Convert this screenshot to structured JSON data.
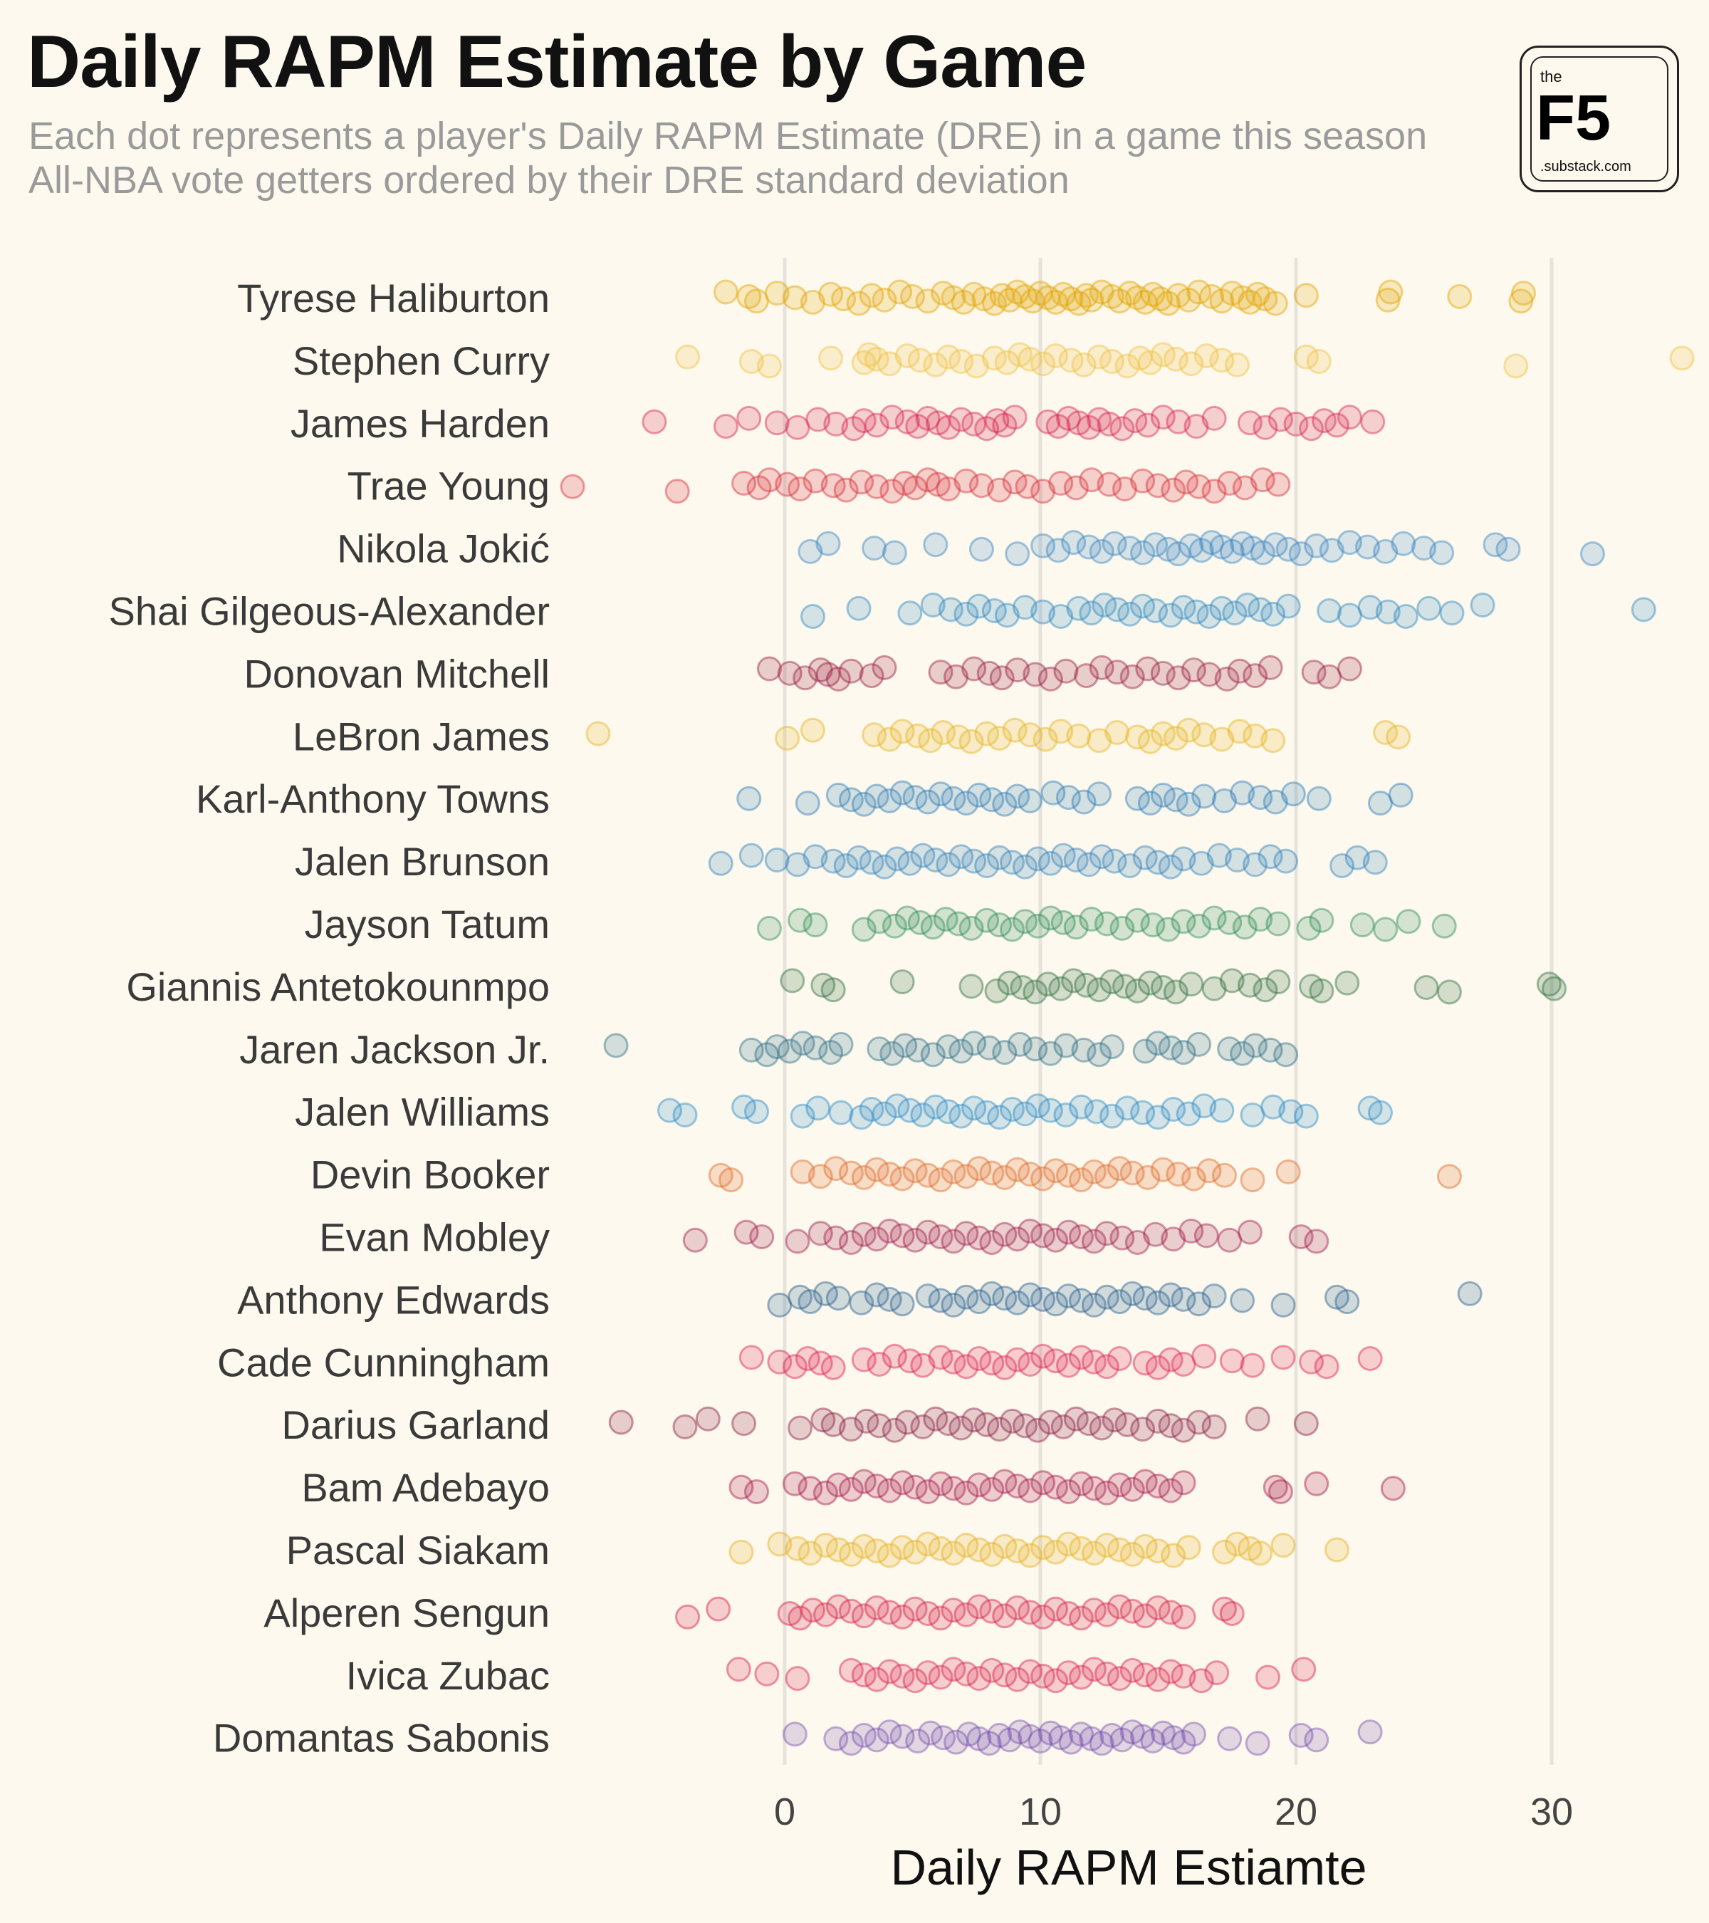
{
  "header": {
    "title": "Daily RAPM Estimate by Game",
    "subtitle_line1": "Each dot represents a player's Daily RAPM Estimate (DRE) in a game this season",
    "subtitle_line2": "All-NBA vote getters ordered by their DRE standard deviation"
  },
  "logo": {
    "the": "the",
    "f5": "F5",
    "substack": ".substack.com"
  },
  "chart_data": {
    "type": "scatter",
    "title": "Daily RAPM Estimate by Game",
    "xlabel": "Daily RAPM Estiamte",
    "ylabel": "",
    "xlim": [
      -8.5,
      35.5
    ],
    "xticks": [
      0,
      10,
      20,
      30
    ],
    "grid": true,
    "legend": "none",
    "series": [
      {
        "name": "Tyrese Haliburton",
        "color": "#e2a400",
        "values": [
          -2.3,
          -1.4,
          -1.1,
          -0.3,
          0.4,
          1.1,
          1.8,
          2.3,
          2.9,
          3.4,
          3.9,
          4.5,
          5.0,
          5.6,
          6.2,
          6.6,
          7.0,
          7.4,
          7.8,
          8.2,
          8.5,
          8.8,
          9.1,
          9.4,
          9.7,
          10.0,
          10.3,
          10.6,
          10.9,
          11.2,
          11.5,
          11.8,
          12.0,
          12.4,
          12.8,
          13.1,
          13.5,
          13.8,
          14.1,
          14.4,
          14.7,
          15.0,
          15.4,
          15.8,
          16.2,
          16.7,
          17.1,
          17.5,
          17.9,
          18.2,
          18.5,
          18.8,
          19.2,
          20.4,
          23.6,
          23.7,
          26.4,
          28.8,
          28.9
        ]
      },
      {
        "name": "Stephen Curry",
        "color": "#f0c040",
        "values": [
          -3.8,
          -1.3,
          -0.6,
          1.8,
          3.1,
          3.3,
          3.6,
          4.1,
          4.8,
          5.3,
          5.9,
          6.4,
          6.9,
          7.5,
          8.2,
          8.7,
          9.2,
          9.6,
          10.1,
          10.6,
          11.2,
          11.7,
          12.3,
          12.8,
          13.4,
          13.9,
          14.3,
          14.8,
          15.3,
          15.9,
          16.5,
          17.1,
          17.7,
          20.4,
          20.9,
          28.6,
          35.1
        ]
      },
      {
        "name": "James Harden",
        "color": "#d9264f",
        "values": [
          -5.1,
          -2.3,
          -1.4,
          -0.3,
          0.5,
          1.3,
          2.0,
          2.7,
          3.1,
          3.6,
          4.2,
          4.8,
          5.2,
          5.6,
          6.0,
          6.4,
          6.9,
          7.4,
          7.9,
          8.3,
          8.6,
          9.0,
          10.3,
          10.7,
          11.1,
          11.5,
          11.9,
          12.3,
          12.7,
          13.2,
          13.7,
          14.2,
          14.8,
          15.4,
          16.1,
          16.8,
          18.2,
          18.8,
          19.4,
          20.0,
          20.6,
          21.1,
          21.6,
          22.1,
          23.0
        ]
      },
      {
        "name": "Trae Young",
        "color": "#d92f3a",
        "values": [
          -8.3,
          -4.2,
          -1.6,
          -1.0,
          -0.6,
          0.1,
          0.6,
          1.2,
          1.9,
          2.4,
          3.0,
          3.6,
          4.2,
          4.7,
          5.1,
          5.6,
          6.0,
          6.4,
          7.1,
          7.7,
          8.4,
          9.0,
          9.5,
          10.1,
          10.8,
          11.4,
          12.0,
          12.7,
          13.3,
          14.0,
          14.6,
          15.2,
          15.7,
          16.2,
          16.8,
          17.4,
          18.0,
          18.7,
          19.3
        ]
      },
      {
        "name": "Nikola Jokić",
        "color": "#3a86c2",
        "values": [
          1.0,
          1.7,
          3.5,
          4.3,
          5.9,
          7.7,
          9.1,
          10.1,
          10.7,
          11.3,
          11.9,
          12.4,
          12.9,
          13.5,
          14.0,
          14.5,
          15.0,
          15.4,
          15.9,
          16.3,
          16.7,
          17.1,
          17.5,
          17.9,
          18.3,
          18.7,
          19.2,
          19.7,
          20.2,
          20.8,
          21.4,
          22.1,
          22.8,
          23.5,
          24.2,
          25.0,
          25.7,
          27.8,
          28.3,
          31.6
        ]
      },
      {
        "name": "Shai Gilgeous-Alexander",
        "color": "#2c87c0",
        "values": [
          1.1,
          2.9,
          4.9,
          5.8,
          6.5,
          7.1,
          7.6,
          8.2,
          8.7,
          9.4,
          10.1,
          10.8,
          11.5,
          12.0,
          12.5,
          13.0,
          13.5,
          14.0,
          14.5,
          15.1,
          15.6,
          16.1,
          16.6,
          17.1,
          17.6,
          18.1,
          18.6,
          19.1,
          19.7,
          21.3,
          22.1,
          22.9,
          23.6,
          24.3,
          25.2,
          26.1,
          27.3,
          33.6
        ]
      },
      {
        "name": "Donovan Mitchell",
        "color": "#9b1d43",
        "values": [
          -0.6,
          0.2,
          0.8,
          1.4,
          1.7,
          2.1,
          2.6,
          3.4,
          3.9,
          6.1,
          6.7,
          7.4,
          8.0,
          8.5,
          9.1,
          9.8,
          10.4,
          11.0,
          11.8,
          12.4,
          13.0,
          13.6,
          14.2,
          14.8,
          15.4,
          16.0,
          16.6,
          17.3,
          17.8,
          18.4,
          19.0,
          20.7,
          21.3,
          22.1
        ]
      },
      {
        "name": "LeBron James",
        "color": "#e6b422",
        "values": [
          -7.3,
          0.1,
          1.1,
          3.5,
          4.1,
          4.6,
          5.2,
          5.7,
          6.2,
          6.8,
          7.3,
          7.9,
          8.4,
          9.0,
          9.6,
          10.2,
          10.8,
          11.5,
          12.3,
          13.0,
          13.8,
          14.3,
          14.8,
          15.3,
          15.8,
          16.4,
          17.1,
          17.8,
          18.4,
          19.1,
          23.5,
          24.0
        ]
      },
      {
        "name": "Karl-Anthony Towns",
        "color": "#2c7bb6",
        "values": [
          -1.4,
          0.9,
          2.1,
          2.6,
          3.1,
          3.6,
          4.1,
          4.6,
          5.1,
          5.6,
          6.1,
          6.6,
          7.1,
          7.6,
          8.1,
          8.6,
          9.1,
          9.6,
          10.5,
          11.1,
          11.7,
          12.3,
          13.8,
          14.3,
          14.8,
          15.3,
          15.8,
          16.4,
          17.2,
          17.9,
          18.6,
          19.2,
          19.9,
          20.9,
          23.3,
          24.1
        ]
      },
      {
        "name": "Jalen Brunson",
        "color": "#3281ba",
        "values": [
          -2.5,
          -1.3,
          -0.3,
          0.5,
          1.2,
          1.9,
          2.4,
          2.9,
          3.4,
          3.9,
          4.4,
          4.9,
          5.4,
          5.9,
          6.4,
          6.9,
          7.4,
          7.9,
          8.4,
          8.9,
          9.4,
          9.9,
          10.4,
          10.9,
          11.4,
          11.9,
          12.4,
          12.9,
          13.5,
          14.1,
          14.6,
          15.1,
          15.6,
          16.3,
          17.0,
          17.7,
          18.4,
          19.0,
          19.6,
          21.8,
          22.4,
          23.1
        ]
      },
      {
        "name": "Jayson Tatum",
        "color": "#2e8b57",
        "values": [
          -0.6,
          0.6,
          1.2,
          3.1,
          3.7,
          4.3,
          4.8,
          5.3,
          5.8,
          6.3,
          6.8,
          7.3,
          7.9,
          8.4,
          8.9,
          9.4,
          9.9,
          10.4,
          10.9,
          11.4,
          12.0,
          12.6,
          13.2,
          13.8,
          14.4,
          15.0,
          15.6,
          16.2,
          16.8,
          17.4,
          18.0,
          18.6,
          19.3,
          20.5,
          21.0,
          22.6,
          23.5,
          24.4,
          25.8
        ]
      },
      {
        "name": "Giannis Antetokounmpo",
        "color": "#2f6f3e",
        "values": [
          0.3,
          1.5,
          1.9,
          4.6,
          7.3,
          8.3,
          8.8,
          9.3,
          9.8,
          10.3,
          10.8,
          11.3,
          11.8,
          12.3,
          12.8,
          13.3,
          13.8,
          14.3,
          14.8,
          15.3,
          15.9,
          16.8,
          17.5,
          18.2,
          18.8,
          19.3,
          20.6,
          21.0,
          22.0,
          25.1,
          26.0,
          29.9,
          30.1
        ]
      },
      {
        "name": "Jaren Jackson Jr.",
        "color": "#2d6f86",
        "values": [
          -6.6,
          -1.3,
          -0.7,
          -0.3,
          0.2,
          0.7,
          1.2,
          1.8,
          2.2,
          3.7,
          4.2,
          4.7,
          5.2,
          5.8,
          6.4,
          6.9,
          7.4,
          8.0,
          8.6,
          9.2,
          9.8,
          10.4,
          11.0,
          11.7,
          12.3,
          12.8,
          14.1,
          14.6,
          15.1,
          15.6,
          16.2,
          17.4,
          17.9,
          18.4,
          19.0,
          19.6
        ]
      },
      {
        "name": "Jalen Williams",
        "color": "#2b8ac8",
        "values": [
          -4.5,
          -3.9,
          -1.6,
          -1.1,
          0.7,
          1.3,
          2.2,
          3.0,
          3.4,
          3.9,
          4.4,
          4.9,
          5.4,
          5.9,
          6.4,
          6.9,
          7.4,
          7.9,
          8.4,
          8.9,
          9.4,
          9.9,
          10.4,
          11.0,
          11.6,
          12.2,
          12.8,
          13.4,
          14.0,
          14.6,
          15.2,
          15.8,
          16.4,
          17.1,
          18.3,
          19.1,
          19.8,
          20.4,
          22.9,
          23.3
        ]
      },
      {
        "name": "Devin Booker",
        "color": "#e06b2a",
        "values": [
          -2.5,
          -2.1,
          0.7,
          1.4,
          2.0,
          2.6,
          3.1,
          3.6,
          4.1,
          4.6,
          5.1,
          5.6,
          6.1,
          6.6,
          7.1,
          7.6,
          8.1,
          8.6,
          9.1,
          9.6,
          10.1,
          10.6,
          11.1,
          11.6,
          12.1,
          12.6,
          13.1,
          13.6,
          14.2,
          14.8,
          15.4,
          16.0,
          16.6,
          17.2,
          18.3,
          19.7,
          26.0
        ]
      },
      {
        "name": "Evan Mobley",
        "color": "#a11d4d",
        "values": [
          -3.5,
          -1.5,
          -0.9,
          0.5,
          1.4,
          2.0,
          2.6,
          3.1,
          3.6,
          4.1,
          4.6,
          5.1,
          5.6,
          6.1,
          6.6,
          7.1,
          7.6,
          8.1,
          8.6,
          9.1,
          9.6,
          10.1,
          10.6,
          11.1,
          11.6,
          12.1,
          12.6,
          13.2,
          13.8,
          14.5,
          15.2,
          15.9,
          16.5,
          17.4,
          18.2,
          20.2,
          20.8
        ]
      },
      {
        "name": "Anthony Edwards",
        "color": "#245e8f",
        "values": [
          -0.2,
          0.6,
          1.0,
          1.6,
          2.1,
          3.0,
          3.6,
          4.1,
          4.6,
          5.6,
          6.1,
          6.6,
          7.1,
          7.6,
          8.1,
          8.6,
          9.1,
          9.6,
          10.1,
          10.6,
          11.1,
          11.6,
          12.1,
          12.6,
          13.1,
          13.6,
          14.1,
          14.6,
          15.1,
          15.6,
          16.2,
          16.8,
          17.9,
          19.5,
          21.6,
          22.0,
          26.8
        ]
      },
      {
        "name": "Cade Cunningham",
        "color": "#e0224f",
        "values": [
          -1.3,
          -0.2,
          0.4,
          0.9,
          1.4,
          1.9,
          3.1,
          3.7,
          4.3,
          4.9,
          5.4,
          6.1,
          6.6,
          7.1,
          7.6,
          8.1,
          8.6,
          9.1,
          9.6,
          10.1,
          10.6,
          11.1,
          11.6,
          12.1,
          12.6,
          13.1,
          14.1,
          14.6,
          15.1,
          15.6,
          16.4,
          17.5,
          18.3,
          19.5,
          20.6,
          21.2,
          22.9
        ]
      },
      {
        "name": "Darius Garland",
        "color": "#8c1c45",
        "values": [
          -6.4,
          -3.9,
          -3.0,
          -1.6,
          0.6,
          1.5,
          1.9,
          2.6,
          3.2,
          3.7,
          4.3,
          4.8,
          5.4,
          5.9,
          6.4,
          6.9,
          7.4,
          7.9,
          8.4,
          8.9,
          9.4,
          9.9,
          10.4,
          10.9,
          11.4,
          11.9,
          12.4,
          12.9,
          13.4,
          14.0,
          14.6,
          15.1,
          15.6,
          16.2,
          16.8,
          18.5,
          20.4
        ]
      },
      {
        "name": "Bam Adebayo",
        "color": "#a8174a",
        "values": [
          -1.7,
          -1.1,
          0.4,
          1.0,
          1.6,
          2.1,
          2.6,
          3.1,
          3.6,
          4.1,
          4.6,
          5.1,
          5.6,
          6.1,
          6.6,
          7.1,
          7.6,
          8.1,
          8.6,
          9.1,
          9.6,
          10.1,
          10.6,
          11.1,
          11.6,
          12.1,
          12.6,
          13.1,
          13.6,
          14.1,
          14.6,
          15.1,
          15.6,
          19.2,
          19.4,
          20.8,
          23.8
        ]
      },
      {
        "name": "Pascal Siakam",
        "color": "#e6b020",
        "values": [
          -1.7,
          -0.2,
          0.5,
          1.0,
          1.6,
          2.1,
          2.6,
          3.1,
          3.6,
          4.1,
          4.6,
          5.1,
          5.6,
          6.1,
          6.6,
          7.1,
          7.6,
          8.1,
          8.6,
          9.1,
          9.6,
          10.1,
          10.6,
          11.1,
          11.6,
          12.1,
          12.6,
          13.1,
          13.6,
          14.1,
          14.6,
          15.2,
          15.8,
          17.2,
          17.7,
          18.2,
          18.6,
          19.5,
          21.6
        ]
      },
      {
        "name": "Alperen Sengun",
        "color": "#d91f45",
        "values": [
          -3.8,
          -2.6,
          0.2,
          0.6,
          1.1,
          1.6,
          2.1,
          2.6,
          3.1,
          3.6,
          4.1,
          4.6,
          5.1,
          5.6,
          6.1,
          6.6,
          7.1,
          7.6,
          8.1,
          8.6,
          9.1,
          9.6,
          10.1,
          10.6,
          11.1,
          11.6,
          12.1,
          12.6,
          13.1,
          13.6,
          14.1,
          14.6,
          15.1,
          15.6,
          17.2,
          17.5
        ]
      },
      {
        "name": "Ivica Zubac",
        "color": "#dc214d",
        "values": [
          -1.8,
          -0.7,
          0.5,
          2.6,
          3.1,
          3.6,
          4.1,
          4.6,
          5.1,
          5.6,
          6.1,
          6.6,
          7.1,
          7.6,
          8.1,
          8.6,
          9.1,
          9.6,
          10.1,
          10.6,
          11.1,
          11.6,
          12.1,
          12.6,
          13.1,
          13.6,
          14.1,
          14.6,
          15.1,
          15.6,
          16.3,
          16.9,
          18.9,
          20.3
        ]
      },
      {
        "name": "Domantas Sabonis",
        "color": "#7a4fb0",
        "values": [
          0.4,
          2.0,
          2.6,
          3.1,
          3.6,
          4.1,
          4.6,
          5.2,
          5.7,
          6.2,
          6.7,
          7.2,
          7.6,
          8.0,
          8.4,
          8.8,
          9.2,
          9.6,
          10.0,
          10.4,
          10.8,
          11.2,
          11.6,
          12.0,
          12.4,
          12.8,
          13.2,
          13.6,
          14.0,
          14.4,
          14.8,
          15.2,
          15.6,
          16.0,
          17.4,
          18.5,
          20.2,
          20.8,
          22.9
        ]
      }
    ]
  }
}
